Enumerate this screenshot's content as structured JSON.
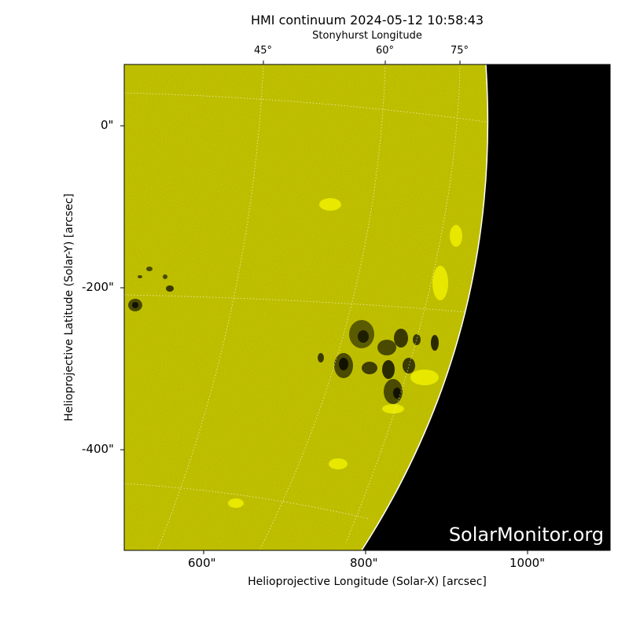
{
  "title": "HMI continuum 2024-05-12 10:58:43",
  "top_axis_label": "Stonyhurst Longitude",
  "x_axis_label": "Helioprojective Longitude (Solar-X) [arcsec]",
  "y_axis_label": "Helioprojective Latitude (Solar-Y) [arcsec]",
  "x_ticks": [
    "600\"",
    "800\"",
    "1000\""
  ],
  "y_ticks": [
    "0\"",
    "-200\"",
    "-400\""
  ],
  "top_ticks": [
    "45°",
    "60°",
    "75°"
  ],
  "watermark": "SolarMonitor.org",
  "colors": {
    "disk": "#cccc00",
    "space": "#000000",
    "grid": "#ffffff"
  }
}
